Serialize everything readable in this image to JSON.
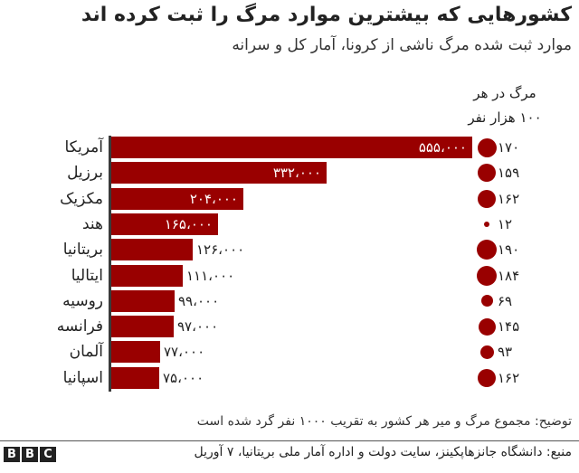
{
  "header": {
    "title": "کشورهایی که بیشترین موارد مرگ را ثبت کرده اند",
    "subtitle": "موارد ثبت شده مرگ ناشی از کرونا، آمار کل و سرانه"
  },
  "per_capita_header": {
    "line1": "مرگ در هر",
    "line2": "۱۰۰ هزار نفر"
  },
  "colors": {
    "bar": "#990000",
    "dot": "#990000",
    "axis": "#3a3a3a"
  },
  "chart_data": {
    "type": "bar",
    "orientation": "horizontal",
    "title": "کشورهایی که بیشترین موارد مرگ را ثبت کرده اند",
    "subtitle": "موارد ثبت شده مرگ ناشی از کرونا، آمار کل و سرانه",
    "categories": [
      "آمریکا",
      "برزیل",
      "مکزیک",
      "هند",
      "بریتانیا",
      "ایتالیا",
      "روسیه",
      "فرانسه",
      "آلمان",
      "اسپانیا"
    ],
    "series": [
      {
        "name": "total_deaths",
        "values": [
          555000,
          332000,
          204000,
          165000,
          126000,
          111000,
          99000,
          97000,
          77000,
          75000
        ]
      },
      {
        "name": "مرگ در هر ۱۰۰ هزار نفر",
        "values": [
          170,
          159,
          162,
          12,
          190,
          184,
          69,
          145,
          93,
          162
        ]
      }
    ],
    "rows": [
      {
        "country": "آمریکا",
        "total": 555000,
        "total_label": "۵۵۵،۰۰۰",
        "per100k": 170,
        "per100k_label": "۱۷۰",
        "label_inside": true
      },
      {
        "country": "برزیل",
        "total": 332000,
        "total_label": "۳۳۲،۰۰۰",
        "per100k": 159,
        "per100k_label": "۱۵۹",
        "label_inside": true
      },
      {
        "country": "مکزیک",
        "total": 204000,
        "total_label": "۲۰۴،۰۰۰",
        "per100k": 162,
        "per100k_label": "۱۶۲",
        "label_inside": true
      },
      {
        "country": "هند",
        "total": 165000,
        "total_label": "۱۶۵،۰۰۰",
        "per100k": 12,
        "per100k_label": "۱۲",
        "label_inside": true
      },
      {
        "country": "بریتانیا",
        "total": 126000,
        "total_label": "۱۲۶،۰۰۰",
        "per100k": 190,
        "per100k_label": "۱۹۰",
        "label_inside": false
      },
      {
        "country": "ایتالیا",
        "total": 111000,
        "total_label": "۱۱۱،۰۰۰",
        "per100k": 184,
        "per100k_label": "۱۸۴",
        "label_inside": false
      },
      {
        "country": "روسیه",
        "total": 99000,
        "total_label": "۹۹،۰۰۰",
        "per100k": 69,
        "per100k_label": "۶۹",
        "label_inside": false
      },
      {
        "country": "فرانسه",
        "total": 97000,
        "total_label": "۹۷،۰۰۰",
        "per100k": 145,
        "per100k_label": "۱۴۵",
        "label_inside": false
      },
      {
        "country": "آلمان",
        "total": 77000,
        "total_label": "۷۷،۰۰۰",
        "per100k": 93,
        "per100k_label": "۹۳",
        "label_inside": false
      },
      {
        "country": "اسپانیا",
        "total": 75000,
        "total_label": "۷۵،۰۰۰",
        "per100k": 162,
        "per100k_label": "۱۶۲",
        "label_inside": false
      }
    ],
    "xlabel": "",
    "ylabel": "",
    "grid": false,
    "legend": "none"
  },
  "footer": {
    "note": "توضیح: مجموع مرگ و میر هر کشور به تقریب ۱۰۰۰ نفر گرد شده است",
    "source": "منبع: دانشگاه جانزهاپکینز، سایت دولت و اداره آمار ملی بریتانیا، ۷ آوریل",
    "logo_letters": [
      "B",
      "B",
      "C"
    ]
  }
}
